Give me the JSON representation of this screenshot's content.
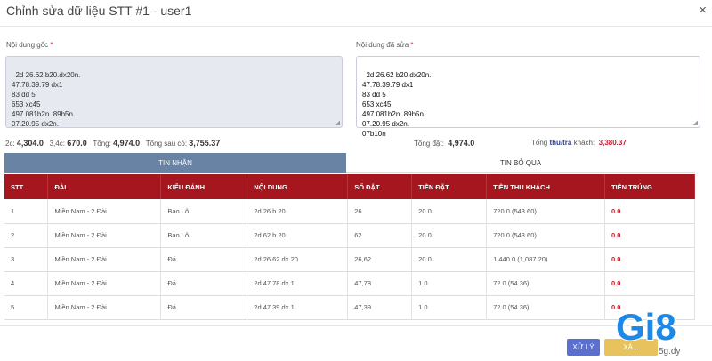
{
  "modal": {
    "title": "Chỉnh sửa dữ liệu STT #1 - user1",
    "close_glyph": "×"
  },
  "original": {
    "label": "Nội dung gốc",
    "required_mark": "*",
    "text": "2d 26.62 b20.dx20n.\n47.78.39.79 dx1\n83 dd 5\n653 xc45\n497.081b2n. 89b5n.\n07.20.95 dx2n."
  },
  "edited": {
    "label": "Nội dung đã sửa",
    "required_mark": "*",
    "text": "2d 26.62 b20.dx20n.\n47.78.39.79 dx1\n83 dd 5\n653 xc45\n497.081b2n. 89b5n.\n07.20.95 dx2n.\n07b10n"
  },
  "stats": {
    "c2_label": "2c:",
    "c2_value": "4,304.0",
    "c34_label": "3,4c:",
    "c34_value": "670.0",
    "total_label": "Tổng:",
    "total_value": "4,974.0",
    "after_label": "Tổng sau cò:",
    "after_value": "3,755.37",
    "bet_label": "Tổng đặt:",
    "bet_value": "4,974.0",
    "collect_prefix": "Tổng",
    "collect_word": "thu",
    "collect_sep": "/",
    "pay_word": "trả",
    "collect_suffix": "khách:",
    "collect_value": "3,380.37"
  },
  "tabs": {
    "received": "TIN NHẬN",
    "skipped": "TIN BỎ QUA"
  },
  "table": {
    "headers": [
      "STT",
      "ĐÀI",
      "KIỂU ĐÁNH",
      "NỘI DUNG",
      "SỐ ĐẶT",
      "TIỀN ĐẶT",
      "TIỀN THU KHÁCH",
      "TIỀN TRÚNG"
    ],
    "rows": [
      [
        "1",
        "Miền Nam - 2 Đài",
        "Bao Lô",
        "2d.26.b.20",
        "26",
        "20.0",
        "720.0 (543.60)",
        "0.0"
      ],
      [
        "2",
        "Miền Nam - 2 Đài",
        "Bao Lô",
        "2d.62.b.20",
        "62",
        "20.0",
        "720.0 (543.60)",
        "0.0"
      ],
      [
        "3",
        "Miền Nam - 2 Đài",
        "Đá",
        "2d.26.62.dx.20",
        "26,62",
        "20.0",
        "1,440.0 (1,087.20)",
        "0.0"
      ],
      [
        "4",
        "Miền Nam - 2 Đài",
        "Đá",
        "2d.47.78.dx.1",
        "47,78",
        "1.0",
        "72.0 (54.36)",
        "0.0"
      ],
      [
        "5",
        "Miền Nam - 2 Đài",
        "Đá",
        "2d.47.39.dx.1",
        "47,39",
        "1.0",
        "72.0 (54.36)",
        "0.0"
      ]
    ]
  },
  "footer": {
    "process_label": "XỬ LÝ",
    "confirm_label": "XÁ..."
  },
  "watermark": {
    "brand": "Gi8",
    "sub": "5g.dy"
  },
  "colors": {
    "header_red": "#a5161e",
    "tab_active": "#6883a4",
    "process_btn": "#5b6fd1",
    "confirm_btn": "#e8c35d",
    "win_red": "#c7172b",
    "logo_blue": "#1e88e5"
  }
}
